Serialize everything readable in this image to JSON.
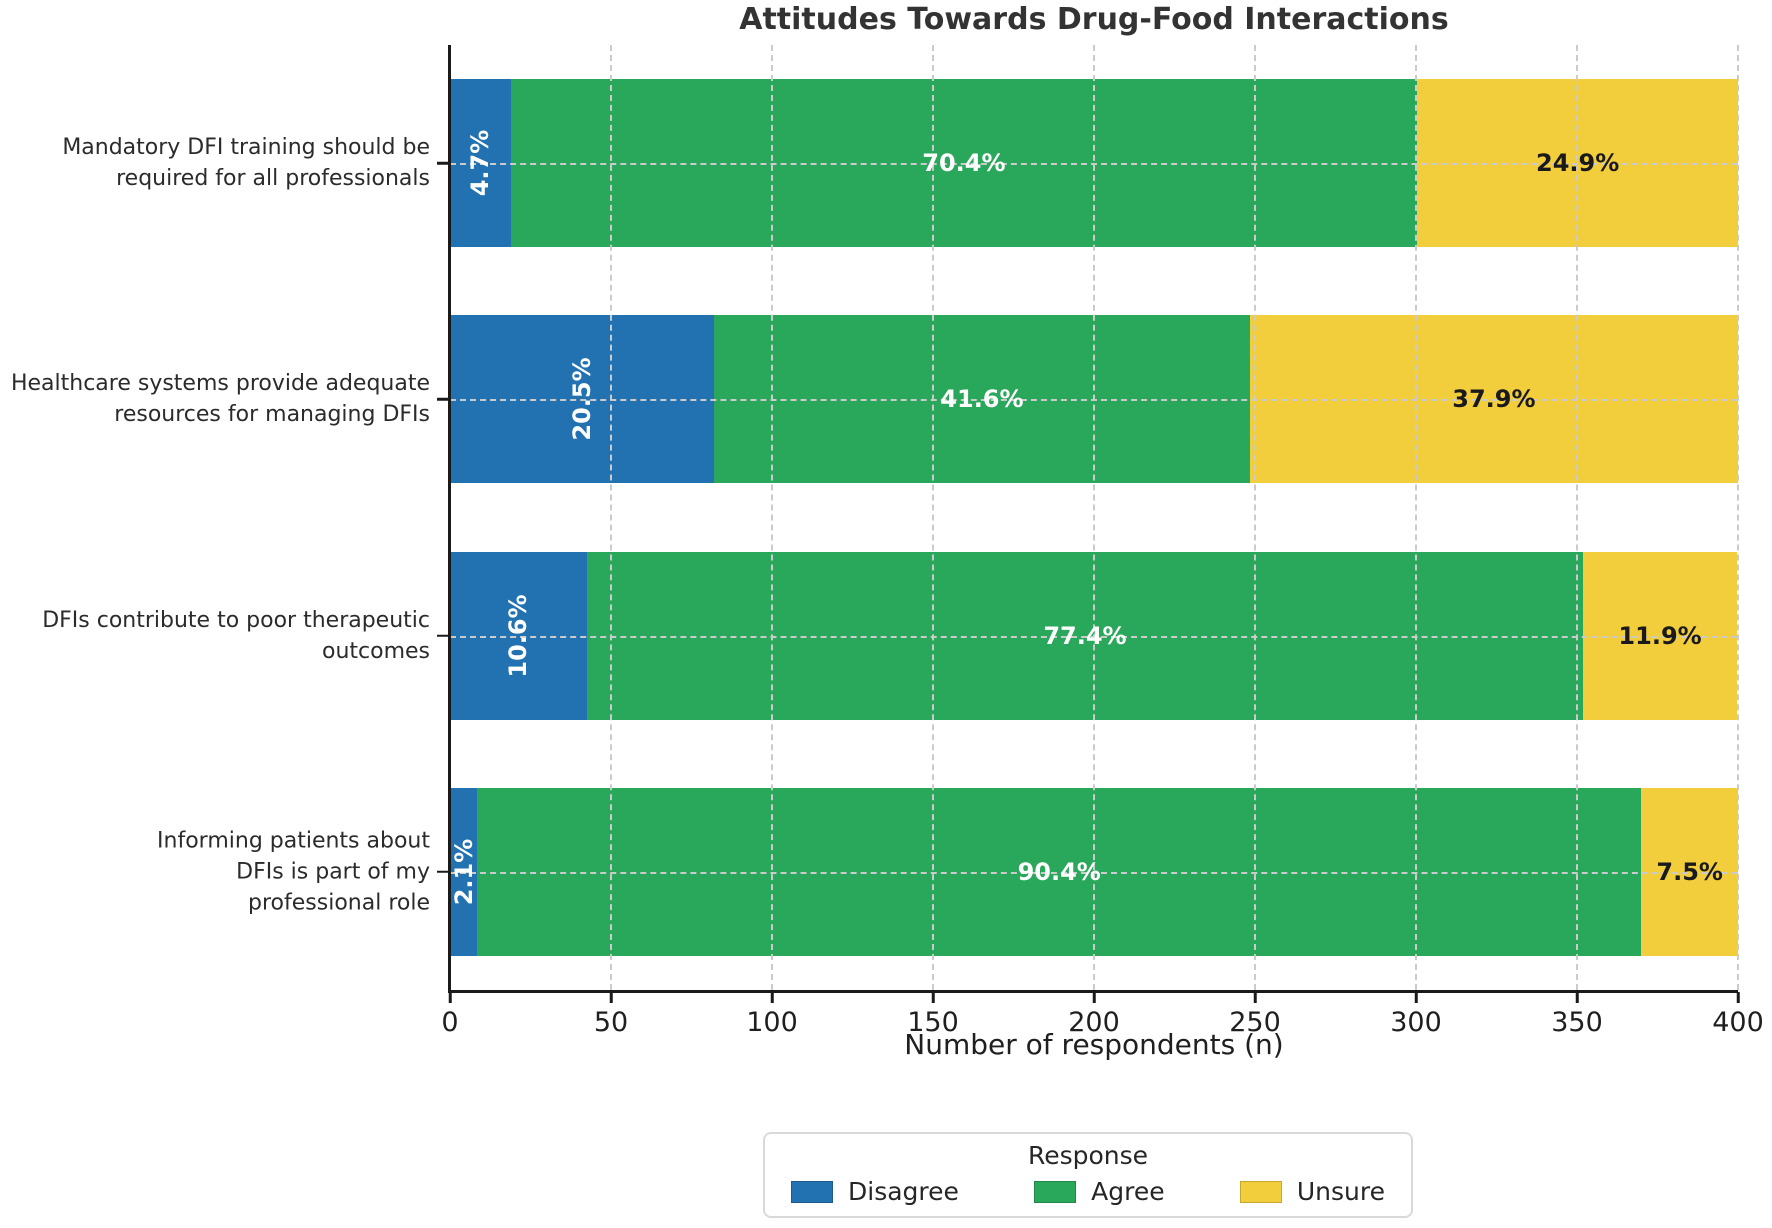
{
  "chart_data": {
    "type": "bar",
    "variant": "horizontal_stacked",
    "title": "Attitudes Towards Drug-Food Interactions",
    "xlabel": "Number of respondents (n)",
    "xlim": [
      0,
      400
    ],
    "x_ticks": [
      0,
      50,
      100,
      150,
      200,
      250,
      300,
      350,
      400
    ],
    "grid": "dashed gridlines on both axes",
    "total_respondents_per_item": 400,
    "categories": [
      {
        "label_lines": [
          "Mandatory DFI training should be",
          "required for all professionals"
        ]
      },
      {
        "label_lines": [
          "Healthcare systems provide adequate",
          "resources for managing DFIs"
        ]
      },
      {
        "label_lines": [
          "DFIs contribute to poor therapeutic",
          "outcomes"
        ]
      },
      {
        "label_lines": [
          "Informing patients about",
          "DFIs is part of my",
          "professional role"
        ]
      }
    ],
    "series": [
      {
        "name": "Disagree",
        "color": "#2272b2",
        "label_color": "#ffffff",
        "pct": [
          4.7,
          20.5,
          10.6,
          2.1
        ],
        "n_est": [
          19,
          82,
          42,
          8
        ]
      },
      {
        "name": "Agree",
        "color": "#29a75a",
        "label_color": "#ffffff",
        "pct": [
          70.4,
          41.6,
          77.4,
          90.4
        ],
        "n_est": [
          282,
          166,
          310,
          362
        ]
      },
      {
        "name": "Unsure",
        "color": "#f2cd3c",
        "label_color": "#1a1a1a",
        "pct": [
          24.9,
          37.9,
          11.9,
          7.5
        ],
        "n_est": [
          100,
          152,
          48,
          30
        ]
      }
    ],
    "legend": {
      "title": "Response",
      "position": "bottom center"
    },
    "styles": {
      "axis_color": "#1a1a1a",
      "gridline_color": "#cbcbcb",
      "title_color": "#333333",
      "background": "#ffffff"
    }
  }
}
